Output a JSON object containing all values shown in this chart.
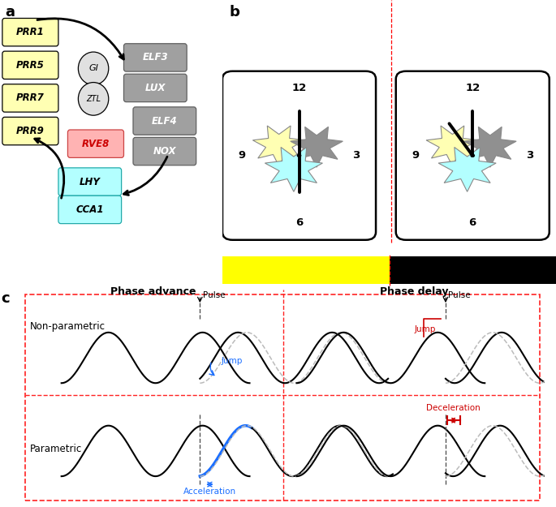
{
  "panel_a": {
    "prr_labels": [
      "PRR1",
      "PRR5",
      "PRR7",
      "PRR9"
    ],
    "prr_color": "#ffffb3",
    "gi_ztl_color": "#e0e0e0",
    "elf_color": "#a0a0a0",
    "rve8_color": "#ffb3b3",
    "lhy_cca1_color": "#b3ffff",
    "title_label": "a"
  },
  "panel_b": {
    "title_label": "b",
    "yellow_color": "#ffff00",
    "black_color": "#000000",
    "star_yellow": "#ffffb3",
    "star_gray": "#909090",
    "star_cyan": "#b3ffff",
    "star_edge": "#888888"
  },
  "panel_c": {
    "title_label": "c",
    "blue_color": "#1a6eff",
    "red_color": "#cc0000",
    "dashed_color": "#bbbbbb",
    "box_color": "#ff2222",
    "wave_amp": 0.72,
    "wave_period": 3.6
  }
}
